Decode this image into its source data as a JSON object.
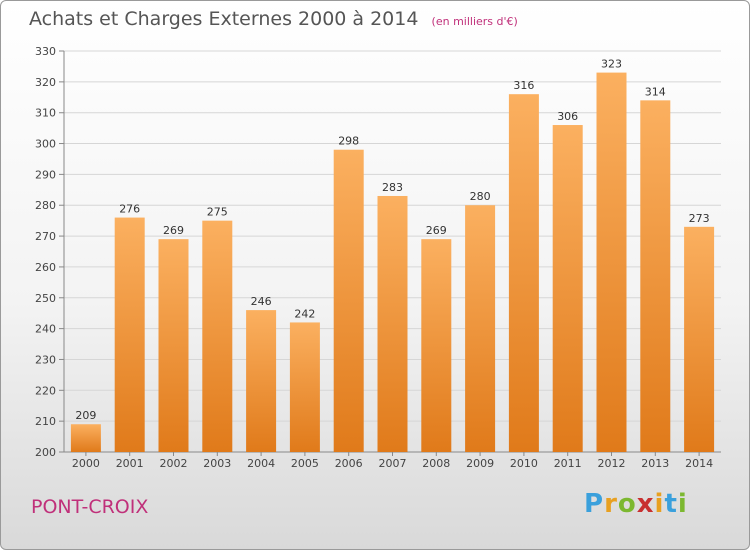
{
  "title": "Achats et Charges Externes 2000 à 2014",
  "subtitle": "(en milliers d'€)",
  "place": "PONT-CROIX",
  "logo": "Proxiti",
  "colors": {
    "bar_light": "#fbb060",
    "bar_dark": "#e07a1a",
    "title": "#555555",
    "accent": "#c0307a",
    "grid": "#d6d6d6"
  },
  "chart_data": {
    "type": "bar",
    "categories": [
      "2000",
      "2001",
      "2002",
      "2003",
      "2004",
      "2005",
      "2006",
      "2007",
      "2008",
      "2009",
      "2010",
      "2011",
      "2012",
      "2013",
      "2014"
    ],
    "values": [
      209,
      276,
      269,
      275,
      246,
      242,
      298,
      283,
      269,
      280,
      316,
      306,
      323,
      314,
      273
    ],
    "title": "Achats et Charges Externes 2000 à 2014",
    "xlabel": "",
    "ylabel": "",
    "ylim": [
      200,
      330
    ],
    "yticks": [
      200,
      210,
      220,
      230,
      240,
      250,
      260,
      270,
      280,
      290,
      300,
      310,
      320,
      330
    ],
    "grid": true,
    "data_labels": true
  }
}
